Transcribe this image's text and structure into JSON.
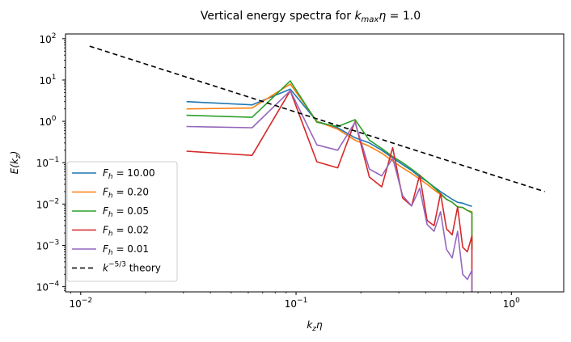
{
  "chart_data": {
    "type": "line",
    "title": "Vertical energy spectra for k_max η = 1.0",
    "title_parts": {
      "prefix": "Vertical energy spectra for ",
      "k": "k",
      "sub": "max",
      "eta": "η",
      "suffix": " = 1.0"
    },
    "xlabel": {
      "main": "k",
      "sub": "z",
      "after": "η"
    },
    "ylabel": {
      "main": "E(k",
      "sub": "z",
      "after": ")"
    },
    "xscale": "log",
    "yscale": "log",
    "xlim": [
      0.0085,
      1.75
    ],
    "ylim": [
      7.5e-05,
      130
    ],
    "x_ticks": [
      {
        "value": 0.01,
        "base": "10",
        "exp": "−2"
      },
      {
        "value": 0.1,
        "base": "10",
        "exp": "−1"
      },
      {
        "value": 1,
        "base": "10",
        "exp": "0"
      }
    ],
    "y_ticks": [
      {
        "value": 0.0001,
        "base": "10",
        "exp": "−4"
      },
      {
        "value": 0.001,
        "base": "10",
        "exp": "−3"
      },
      {
        "value": 0.01,
        "base": "10",
        "exp": "−2"
      },
      {
        "value": 0.1,
        "base": "10",
        "exp": "−1"
      },
      {
        "value": 1,
        "base": "10",
        "exp": "0"
      },
      {
        "value": 10,
        "base": "10",
        "exp": "1"
      },
      {
        "value": 100,
        "base": "10",
        "exp": "2"
      }
    ],
    "grid": false,
    "legend_position": "lower-left",
    "series": [
      {
        "name": "F_h = 10.00",
        "label_main": "F",
        "label_sub": "h",
        "label_rest": " = 10.00",
        "color": "#1f77b4",
        "dash": "",
        "x": [
          0.031,
          0.0625,
          0.094,
          0.125,
          0.156,
          0.188,
          0.219,
          0.25,
          0.281,
          0.3125,
          0.344,
          0.375,
          0.406,
          0.4375,
          0.469,
          0.5,
          0.531,
          0.5625,
          0.594,
          0.625,
          0.656,
          0.656
        ],
        "y": [
          3.0,
          2.5,
          6.0,
          1.0,
          0.7,
          0.4,
          0.3,
          0.2,
          0.13,
          0.09,
          0.065,
          0.045,
          0.035,
          0.026,
          0.02,
          0.016,
          0.013,
          0.011,
          0.0105,
          0.0095,
          0.0088,
          0.0088
        ]
      },
      {
        "name": "F_h = 0.20",
        "label_main": "F",
        "label_sub": "h",
        "label_rest": " = 0.20",
        "color": "#ff7f0e",
        "dash": "",
        "x": [
          0.031,
          0.0625,
          0.094,
          0.125,
          0.156,
          0.188,
          0.219,
          0.25,
          0.281,
          0.3125,
          0.344,
          0.375,
          0.406,
          0.4375,
          0.469,
          0.5,
          0.531,
          0.5625,
          0.594,
          0.625,
          0.656,
          0.656
        ],
        "y": [
          2.0,
          2.1,
          8.0,
          1.0,
          0.65,
          0.35,
          0.25,
          0.17,
          0.11,
          0.075,
          0.055,
          0.04,
          0.03,
          0.022,
          0.017,
          0.013,
          0.011,
          0.0085,
          0.0082,
          0.007,
          0.0065,
          0.0008
        ]
      },
      {
        "name": "F_h = 0.05",
        "label_main": "F",
        "label_sub": "h",
        "label_rest": " = 0.05",
        "color": "#2ca02c",
        "dash": "",
        "x": [
          0.031,
          0.0625,
          0.094,
          0.125,
          0.156,
          0.188,
          0.219,
          0.25,
          0.281,
          0.3125,
          0.344,
          0.375,
          0.406,
          0.4375,
          0.469,
          0.5,
          0.531,
          0.5625,
          0.594,
          0.625,
          0.656,
          0.656
        ],
        "y": [
          1.4,
          1.25,
          9.5,
          0.95,
          0.75,
          1.1,
          0.35,
          0.22,
          0.14,
          0.1,
          0.07,
          0.05,
          0.035,
          0.025,
          0.018,
          0.013,
          0.011,
          0.0085,
          0.0083,
          0.007,
          0.0062,
          0.0008
        ]
      },
      {
        "name": "F_h = 0.02",
        "label_main": "F",
        "label_sub": "h",
        "label_rest": " = 0.02",
        "color": "#d62728",
        "dash": "",
        "x": [
          0.031,
          0.0625,
          0.094,
          0.125,
          0.156,
          0.188,
          0.219,
          0.25,
          0.281,
          0.3125,
          0.344,
          0.375,
          0.406,
          0.4375,
          0.469,
          0.5,
          0.531,
          0.5625,
          0.594,
          0.625,
          0.656,
          0.656
        ],
        "y": [
          0.19,
          0.15,
          5.5,
          0.105,
          0.075,
          1.0,
          0.045,
          0.026,
          0.23,
          0.014,
          0.009,
          0.05,
          0.004,
          0.003,
          0.018,
          0.0025,
          0.0018,
          0.0085,
          0.0009,
          0.0007,
          0.0017,
          5e-05
        ]
      },
      {
        "name": "F_h = 0.01",
        "label_main": "F",
        "label_sub": "h",
        "label_rest": " = 0.01",
        "color": "#9467bd",
        "dash": "",
        "x": [
          0.031,
          0.0625,
          0.094,
          0.125,
          0.156,
          0.188,
          0.219,
          0.25,
          0.281,
          0.3125,
          0.344,
          0.375,
          0.406,
          0.4375,
          0.469,
          0.5,
          0.531,
          0.5625,
          0.594,
          0.625,
          0.656,
          0.656
        ],
        "y": [
          0.75,
          0.7,
          5.5,
          0.27,
          0.2,
          0.95,
          0.07,
          0.048,
          0.13,
          0.016,
          0.009,
          0.024,
          0.0032,
          0.0022,
          0.0065,
          0.0008,
          0.0005,
          0.0022,
          0.0002,
          0.00015,
          0.00025,
          5e-05
        ]
      },
      {
        "name": "k^{-5/3} theory",
        "label_main": "k",
        "label_sup": "−5/3",
        "label_rest": " theory",
        "color": "#000000",
        "dash": "6,4",
        "x": [
          0.011,
          1.43
        ],
        "y": [
          66,
          0.02
        ]
      }
    ]
  }
}
